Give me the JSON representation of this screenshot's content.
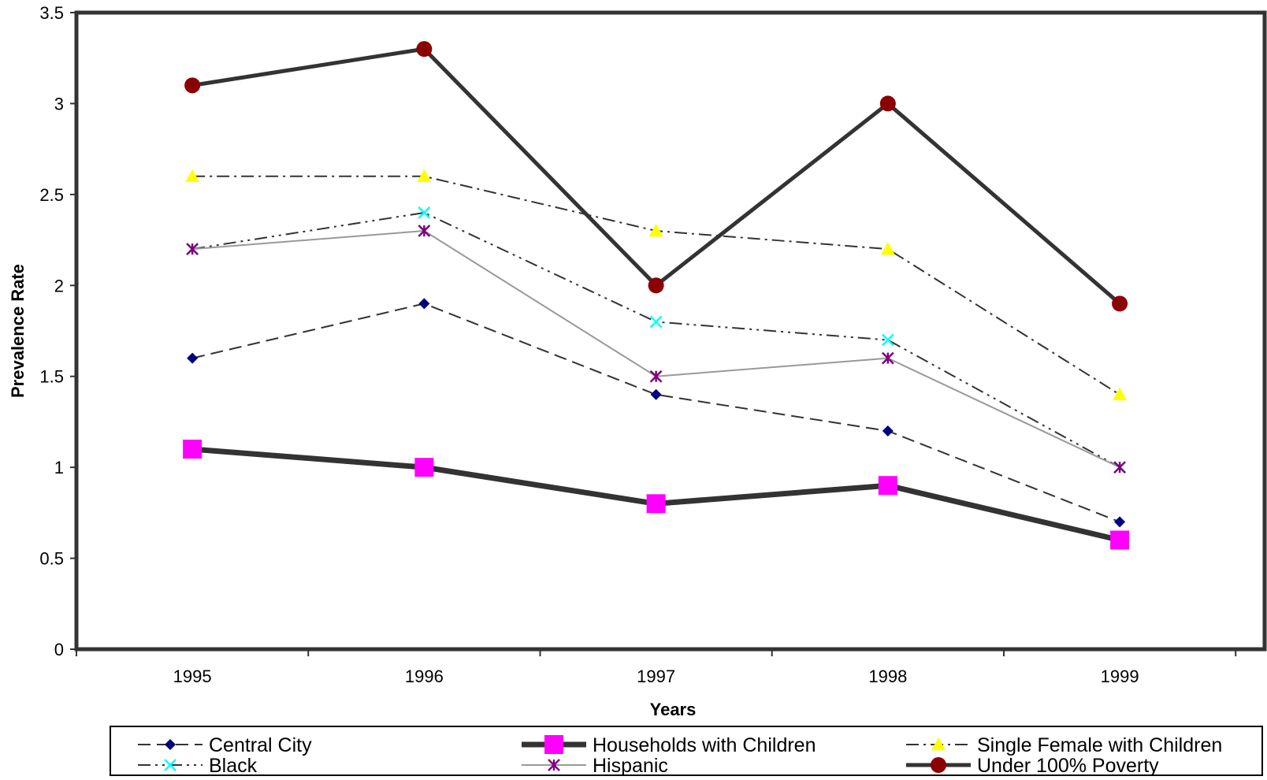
{
  "chart_data": {
    "type": "line",
    "title": "",
    "xlabel": "Years",
    "ylabel": "Prevalence Rate",
    "categories": [
      "1995",
      "1996",
      "1997",
      "1998",
      "1999"
    ],
    "ylim": [
      0,
      3.5
    ],
    "yticks": [
      "0",
      "0.5",
      "1",
      "1.5",
      "2",
      "2.5",
      "3",
      "3.5"
    ],
    "grid": false,
    "legend_position": "bottom",
    "series": [
      {
        "name": "Central City",
        "values": [
          1.6,
          1.9,
          1.4,
          1.2,
          0.7
        ],
        "color": "#000080",
        "line_color": "#333333",
        "marker": "diamond",
        "line_style": "dashed"
      },
      {
        "name": "Households with Children",
        "values": [
          1.1,
          1.0,
          0.8,
          0.9,
          0.6
        ],
        "color": "#FF00FF",
        "line_color": "#333333",
        "marker": "square",
        "line_style": "thick"
      },
      {
        "name": "Single Female with Children",
        "values": [
          2.6,
          2.6,
          2.3,
          2.2,
          1.4
        ],
        "color": "#FFFF00",
        "line_color": "#333333",
        "marker": "triangle",
        "line_style": "dash-dot"
      },
      {
        "name": "Black",
        "values": [
          2.2,
          2.4,
          1.8,
          1.7,
          1.0
        ],
        "color": "#00FFFF",
        "line_color": "#333333",
        "marker": "x",
        "line_style": "dash-dot-dot"
      },
      {
        "name": "Hispanic",
        "values": [
          2.2,
          2.3,
          1.5,
          1.6,
          1.0
        ],
        "color": "#800080",
        "line_color": "#999999",
        "marker": "star",
        "line_style": "solid-thin"
      },
      {
        "name": "Under 100% Poverty",
        "values": [
          3.1,
          3.3,
          2.0,
          3.0,
          1.9
        ],
        "color": "#8B0000",
        "line_color": "#333333",
        "marker": "circle",
        "line_style": "solid"
      }
    ]
  }
}
